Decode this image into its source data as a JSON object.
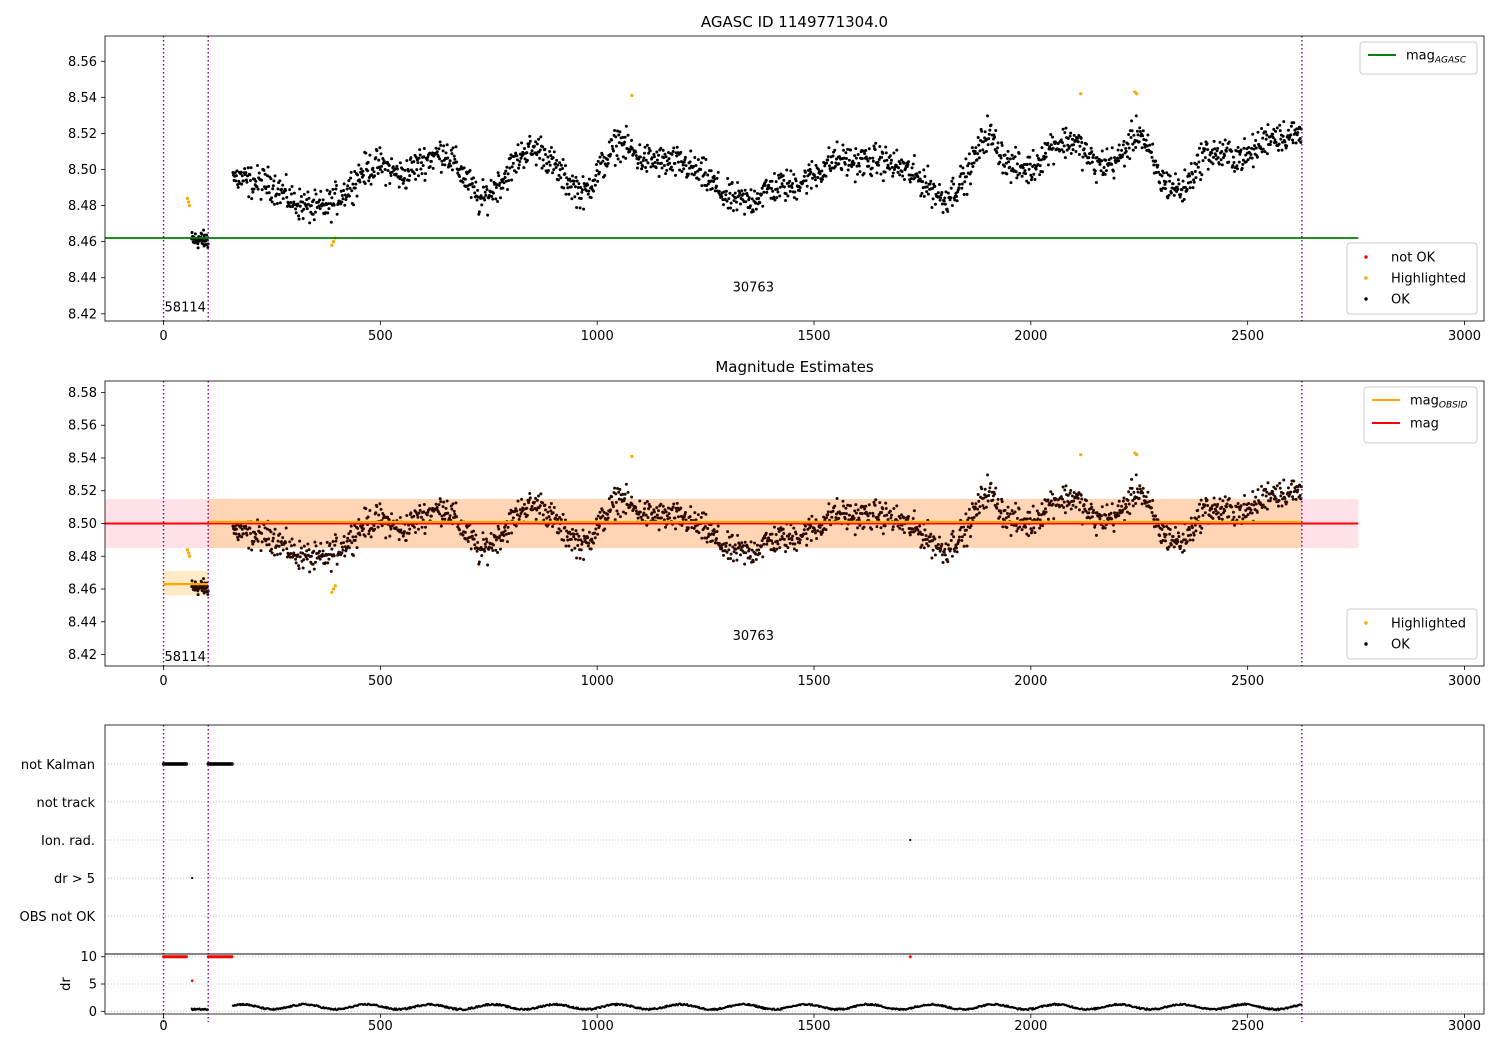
{
  "chart_data": [
    {
      "type": "scatter",
      "title": "AGASC ID 1149771304.0",
      "xlim": [
        -135,
        3045
      ],
      "ylim": [
        8.416,
        8.574
      ],
      "xticks": [
        0,
        500,
        1000,
        1500,
        2000,
        2500,
        3000
      ],
      "yticks": [
        8.42,
        8.44,
        8.46,
        8.48,
        8.5,
        8.52,
        8.54,
        8.56
      ],
      "obs_boundaries": [
        0,
        103,
        2625
      ],
      "obs_labels": [
        {
          "x": 50,
          "y": 8.424,
          "text": "58114"
        },
        {
          "x": 1360,
          "y": 8.435,
          "text": "30763"
        }
      ],
      "mag_agasc": 8.462,
      "mag_agasc_xrange": [
        -135,
        2755
      ],
      "legend_lines": [
        {
          "name": "mag",
          "subscript": "AGASC",
          "color": "#008000"
        }
      ],
      "legend_markers": [
        {
          "name": "not OK",
          "color": "#ff0000"
        },
        {
          "name": "Highlighted",
          "color": "#ffa500"
        },
        {
          "name": "OK",
          "color": "#000000"
        }
      ],
      "highlighted_points": [
        [
          55,
          8.484
        ],
        [
          58,
          8.482
        ],
        [
          60,
          8.48
        ],
        [
          388,
          8.458
        ],
        [
          392,
          8.46
        ],
        [
          396,
          8.462
        ],
        [
          1080,
          8.541
        ],
        [
          2115,
          8.542
        ],
        [
          2240,
          8.543
        ],
        [
          2244,
          8.542
        ]
      ]
    },
    {
      "type": "scatter",
      "title": "Magnitude Estimates",
      "xlim": [
        -135,
        3045
      ],
      "ylim": [
        8.413,
        8.587
      ],
      "xticks": [
        0,
        500,
        1000,
        1500,
        2000,
        2500,
        3000
      ],
      "yticks": [
        8.42,
        8.44,
        8.46,
        8.48,
        8.5,
        8.52,
        8.54,
        8.56,
        8.58
      ],
      "obs_boundaries": [
        0,
        103,
        2625
      ],
      "obs_labels": [
        {
          "x": 50,
          "y": 8.419,
          "text": "58114"
        },
        {
          "x": 1360,
          "y": 8.432,
          "text": "30763"
        }
      ],
      "mag": 8.5,
      "mag_band": [
        8.485,
        8.515
      ],
      "mag_xrange": [
        -135,
        2755
      ],
      "mag_obsid": [
        {
          "x0": 0,
          "x1": 103,
          "value": 8.463,
          "band": [
            8.456,
            8.471
          ]
        },
        {
          "x0": 103,
          "x1": 2625,
          "value": 8.501,
          "band": [
            8.485,
            8.515
          ]
        }
      ],
      "legend_lines": [
        {
          "name": "mag",
          "subscript": "OBSID",
          "color": "#ffa500"
        },
        {
          "name": "mag",
          "subscript": "",
          "color": "#ff0000"
        }
      ],
      "legend_markers": [
        {
          "name": "Highlighted",
          "color": "#ffa500"
        },
        {
          "name": "OK",
          "color": "#000000"
        }
      ],
      "highlighted_points": [
        [
          55,
          8.484
        ],
        [
          58,
          8.482
        ],
        [
          60,
          8.48
        ],
        [
          388,
          8.458
        ],
        [
          392,
          8.46
        ],
        [
          396,
          8.462
        ],
        [
          1080,
          8.541
        ],
        [
          2115,
          8.542
        ],
        [
          2240,
          8.543
        ],
        [
          2244,
          8.542
        ]
      ]
    },
    {
      "type": "scatter",
      "title": "",
      "xlim": [
        -135,
        3045
      ],
      "xticks": [
        0,
        500,
        1000,
        1500,
        2000,
        2500,
        3000
      ],
      "flag_categories": [
        "not Kalman",
        "not track",
        "Ion. rad.",
        "dr > 5",
        "OBS not OK"
      ],
      "flag_points": [
        {
          "category": "not Kalman",
          "x_ranges": [
            [
              0,
              55
            ],
            [
              103,
              160
            ]
          ]
        },
        {
          "category": "Ion. rad.",
          "x": [
            1722
          ]
        },
        {
          "category": "dr > 5",
          "x": [
            66
          ]
        }
      ],
      "dr_ylabel": "dr",
      "dr_yticks": [
        0,
        5,
        10
      ],
      "dr_ylim": [
        -0.5,
        10.5
      ],
      "dr_clipped_at_10": [
        {
          "x_range": [
            0,
            55
          ]
        },
        {
          "x_range": [
            103,
            160
          ]
        },
        {
          "x": 1722
        }
      ],
      "dr_outlier": [
        66,
        5.6
      ],
      "dr_typical_range": [
        0.2,
        1.5
      ],
      "obs_boundaries": [
        0,
        103,
        2625
      ]
    }
  ]
}
